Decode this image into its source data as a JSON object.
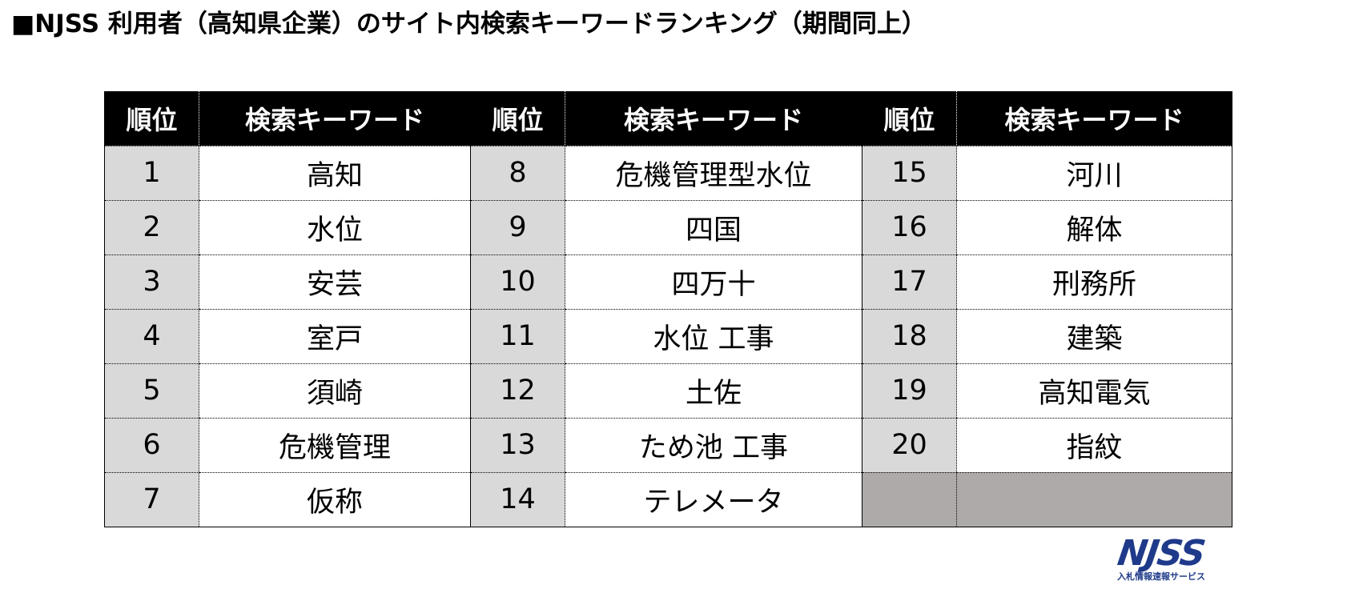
{
  "title": "■NJSS 利用者（高知県企業）のサイト内検索キーワードランキング（期間同上）",
  "headers": [
    "順位",
    "検索キーワード",
    "順位",
    "検索キーワード",
    "順位",
    "検索キーワード"
  ],
  "rows": [
    [
      "1",
      "高知",
      "8",
      "危機管理型水位",
      "15",
      "河川"
    ],
    [
      "2",
      "水位",
      "9",
      "四国",
      "16",
      "解体"
    ],
    [
      "3",
      "安芸",
      "10",
      "四万十",
      "17",
      "刑務所"
    ],
    [
      "4",
      "室戸",
      "11",
      "水位 工事",
      "18",
      "建築"
    ],
    [
      "5",
      "須崎",
      "12",
      "土佐",
      "19",
      "高知電気"
    ],
    [
      "6",
      "危機管理",
      "13",
      "ため池 工事",
      "20",
      "指紋"
    ],
    [
      "7",
      "仮称",
      "14",
      "テレメータ",
      "",
      ""
    ]
  ],
  "logo": {
    "mark": "NJSS",
    "subtitle": "入札情報速報サービス"
  },
  "colors": {
    "header_bg": "#000000",
    "header_text": "#ffffff",
    "rank_bg": "#d9d9d9",
    "empty_bg": "#aeaaaa",
    "logo": "#1f3a8a"
  }
}
